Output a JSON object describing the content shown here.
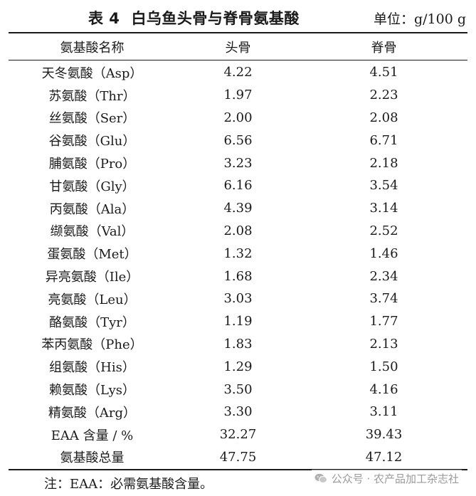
{
  "title": {
    "number": "表 4",
    "text": "白乌鱼头骨与脊骨氨基酸"
  },
  "unit": "单位：g/100 g",
  "columns": [
    "氨基酸名称",
    "头骨",
    "脊骨"
  ],
  "rows": [
    {
      "name": "天冬氨酸（Asp）",
      "head": "4.22",
      "spine": "4.51"
    },
    {
      "name": "苏氨酸（Thr）",
      "head": "1.97",
      "spine": "2.23"
    },
    {
      "name": "丝氨酸（Ser）",
      "head": "2.00",
      "spine": "2.08"
    },
    {
      "name": "谷氨酸（Glu）",
      "head": "6.56",
      "spine": "6.71"
    },
    {
      "name": "脯氨酸（Pro）",
      "head": "3.23",
      "spine": "2.18"
    },
    {
      "name": "甘氨酸（Gly）",
      "head": "6.16",
      "spine": "3.54"
    },
    {
      "name": "丙氨酸（Ala）",
      "head": "4.39",
      "spine": "3.14"
    },
    {
      "name": "缬氨酸（Val）",
      "head": "2.08",
      "spine": "2.52"
    },
    {
      "name": "蛋氨酸（Met）",
      "head": "1.32",
      "spine": "1.46"
    },
    {
      "name": "异亮氨酸（Ile）",
      "head": "1.68",
      "spine": "2.34"
    },
    {
      "name": "亮氨酸（Leu）",
      "head": "3.03",
      "spine": "3.74"
    },
    {
      "name": "酪氨酸（Tyr）",
      "head": "1.19",
      "spine": "1.77"
    },
    {
      "name": "苯丙氨酸（Phe）",
      "head": "1.83",
      "spine": "2.13"
    },
    {
      "name": "组氨酸（His）",
      "head": "1.29",
      "spine": "1.50"
    },
    {
      "name": "赖氨酸（Lys）",
      "head": "3.50",
      "spine": "4.16"
    },
    {
      "name": "精氨酸（Arg）",
      "head": "3.30",
      "spine": "3.11"
    },
    {
      "name": "EAA 含量 / %",
      "head": "32.27",
      "spine": "39.43"
    },
    {
      "name": "氨基酸总量",
      "head": "47.75",
      "spine": "47.12"
    }
  ],
  "note": "注：EAA：必需氨基酸含量。",
  "watermark": {
    "icon": "wechat-icon",
    "text": "公众号 · 农产品加工杂志社"
  }
}
